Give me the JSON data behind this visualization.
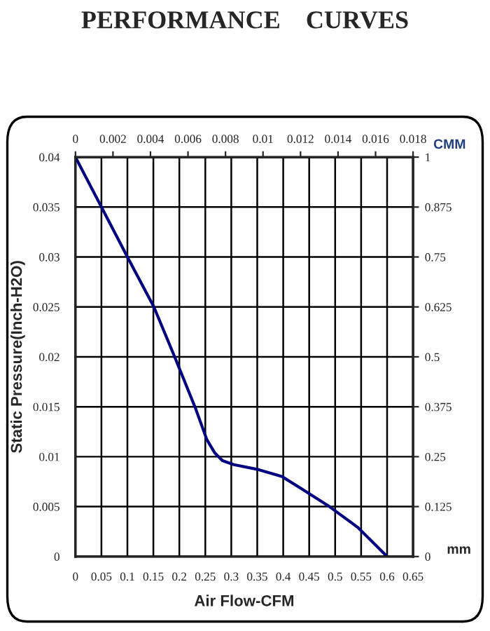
{
  "chart_data": {
    "type": "line",
    "title": "PERFORMANCE    CURVES",
    "xlabel": "Air Flow-CFM",
    "ylabel": "Static Pressure(Inch-H2O)",
    "x2label": "CMM",
    "y2label": "mm",
    "xlim": [
      0,
      0.65
    ],
    "xticks": [
      0,
      0.05,
      0.1,
      0.15,
      0.2,
      0.25,
      0.3,
      0.35,
      0.4,
      0.45,
      0.5,
      0.55,
      0.6,
      0.65
    ],
    "ylim": [
      0,
      0.04
    ],
    "yticks": [
      0,
      0.005,
      0.01,
      0.015,
      0.02,
      0.025,
      0.03,
      0.035,
      0.04
    ],
    "x2lim": [
      0,
      0.018
    ],
    "x2ticks": [
      0,
      0.002,
      0.004,
      0.006,
      0.008,
      0.01,
      0.012,
      0.014,
      0.016,
      0.018
    ],
    "y2lim": [
      0,
      1
    ],
    "y2ticks": [
      0,
      0.125,
      0.25,
      0.375,
      0.5,
      0.625,
      0.75,
      0.875,
      1
    ],
    "grid": true,
    "legend": false,
    "line_style": "solid",
    "series": [
      {
        "color": "#000080",
        "x": [
          0,
          0.05,
          0.1,
          0.151,
          0.191,
          0.23,
          0.253,
          0.268,
          0.283,
          0.305,
          0.353,
          0.398,
          0.435,
          0.489,
          0.544,
          0.6
        ],
        "values": [
          0.04,
          0.035,
          0.03,
          0.025,
          0.02,
          0.015,
          0.0117,
          0.0104,
          0.0096,
          0.0092,
          0.0087,
          0.008,
          0.0068,
          0.005,
          0.0029,
          0
        ]
      }
    ]
  }
}
